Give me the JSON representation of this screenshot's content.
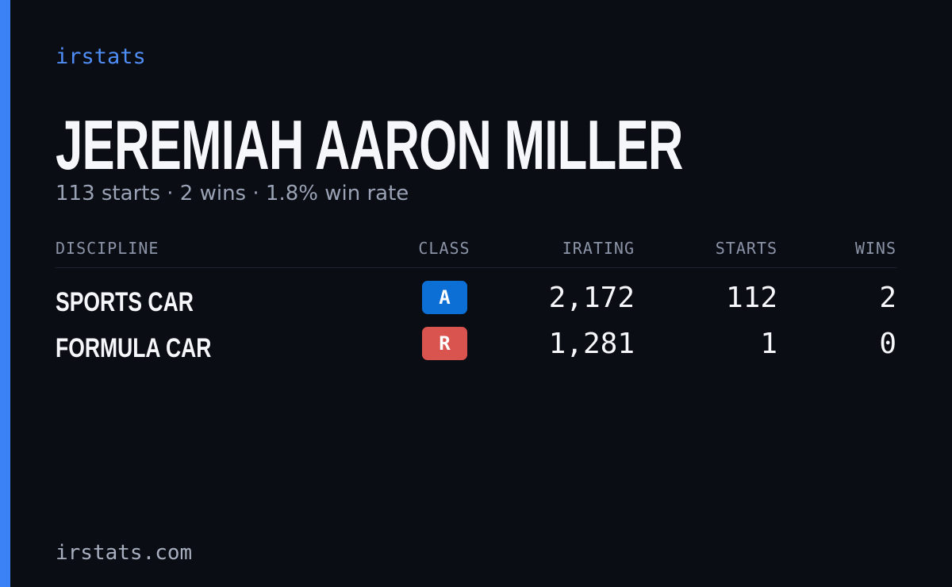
{
  "brand": "irstats",
  "header": {
    "name": "JEREMIAH AARON MILLER",
    "summary": "113 starts · 2 wins · 1.8% win rate"
  },
  "table": {
    "columns": [
      "DISCIPLINE",
      "CLASS",
      "IRATING",
      "STARTS",
      "WINS"
    ],
    "rows": [
      {
        "discipline": "SPORTS CAR",
        "class": "A",
        "irating": "2,172",
        "starts": "112",
        "wins": "2"
      },
      {
        "discipline": "FORMULA CAR",
        "class": "R",
        "irating": "1,281",
        "starts": "1",
        "wins": "0"
      }
    ]
  },
  "footer": "irstats.com"
}
